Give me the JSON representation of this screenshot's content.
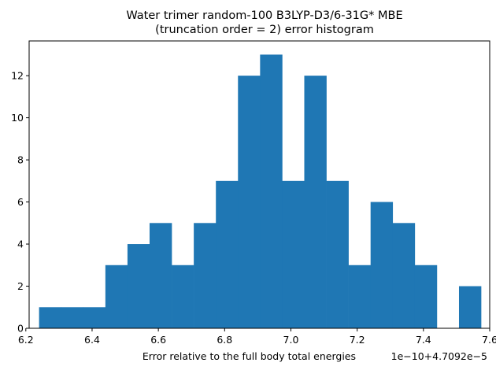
{
  "chart_data": {
    "type": "bar",
    "title_line1": "Water trimer random-100 B3LYP-D3/6-31G* MBE",
    "title_line2": "(truncation order = 2) error histogram",
    "xlabel": "Error relative to the full body total energies",
    "x_offset_label": "1e−10+4.7092e−5",
    "ylabel": "",
    "xlim": [
      6.21,
      7.6
    ],
    "ylim": [
      0,
      13.65
    ],
    "x_ticks": [
      6.2,
      6.4,
      6.6,
      6.8,
      7.0,
      7.2,
      7.4,
      7.6
    ],
    "x_tick_labels": [
      "6.2",
      "6.4",
      "6.6",
      "6.8",
      "7.0",
      "7.2",
      "7.4",
      "7.6"
    ],
    "y_ticks": [
      0,
      2,
      4,
      6,
      8,
      10,
      12
    ],
    "y_tick_labels": [
      "0",
      "2",
      "4",
      "6",
      "8",
      "10",
      "12"
    ],
    "bin_start": 6.24,
    "bin_width": 0.0667,
    "counts": [
      1,
      1,
      1,
      3,
      4,
      5,
      3,
      5,
      7,
      12,
      13,
      7,
      12,
      7,
      3,
      6,
      5,
      3,
      0,
      2
    ],
    "bar_color": "#1f77b4",
    "grid": false,
    "legend": "none"
  }
}
